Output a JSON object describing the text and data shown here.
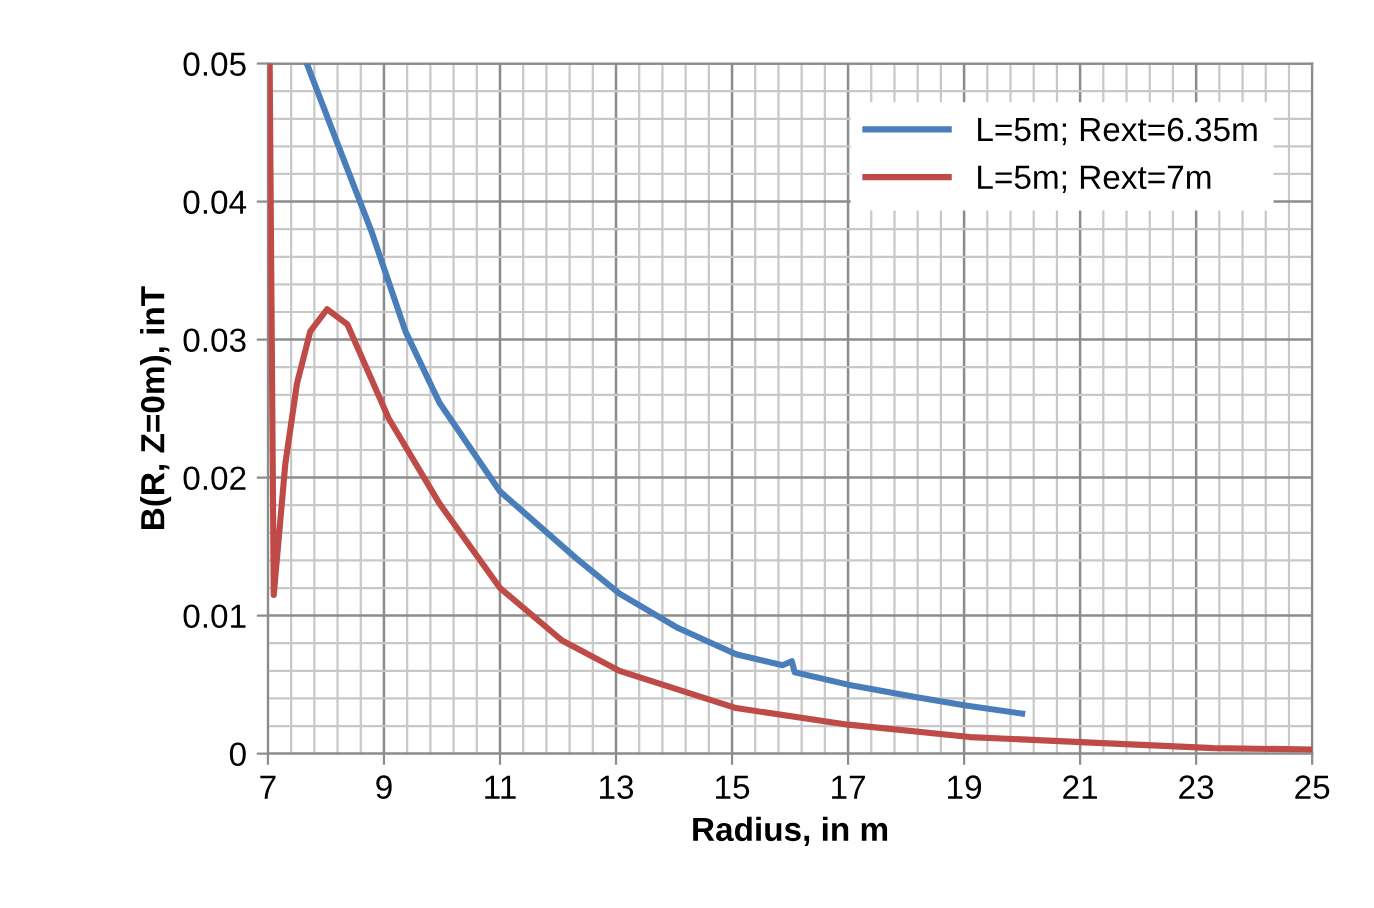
{
  "chart_data": {
    "type": "line",
    "xlabel": "Radius, in m",
    "ylabel": "B(R, Z=0m), inT",
    "xlim": [
      7,
      25
    ],
    "ylim": [
      0,
      0.05
    ],
    "xticks": [
      7,
      9,
      11,
      13,
      15,
      17,
      19,
      21,
      23,
      25
    ],
    "yticks": [
      0,
      0.01,
      0.02,
      0.03,
      0.04,
      0.05
    ],
    "grid": true,
    "legend": "top right",
    "line_style": "solid",
    "marker": "none",
    "series": [
      {
        "name": "L=5m; Rext=6.35m",
        "color": "#4a7ebb",
        "x": [
          7.67,
          8.2,
          8.78,
          9.37,
          9.96,
          11.0,
          12.3,
          13.06,
          14.07,
          15.07,
          15.87,
          16.03,
          16.08,
          17.0,
          18.16,
          19.0,
          20.0
        ],
        "values": [
          0.05,
          0.0442,
          0.0379,
          0.0306,
          0.0254,
          0.019,
          0.0142,
          0.0116,
          0.0091,
          0.0072,
          0.0064,
          0.0067,
          0.0059,
          0.005,
          0.0041,
          0.0035,
          0.0029
        ]
      },
      {
        "name": "L=5m; Rext=7m",
        "color": "#be4b48",
        "x": [
          7.03,
          7.1,
          7.3,
          7.5,
          7.73,
          8.02,
          8.37,
          9.08,
          9.96,
          11.0,
          12.07,
          13.06,
          15.07,
          17.0,
          19.1,
          21.2,
          23.3,
          25.0
        ],
        "values": [
          0.05,
          0.0115,
          0.021,
          0.0268,
          0.0306,
          0.0322,
          0.0311,
          0.0243,
          0.0181,
          0.012,
          0.0082,
          0.006,
          0.0033,
          0.0021,
          0.0012,
          0.0008,
          0.0004,
          0.0003
        ]
      }
    ]
  }
}
